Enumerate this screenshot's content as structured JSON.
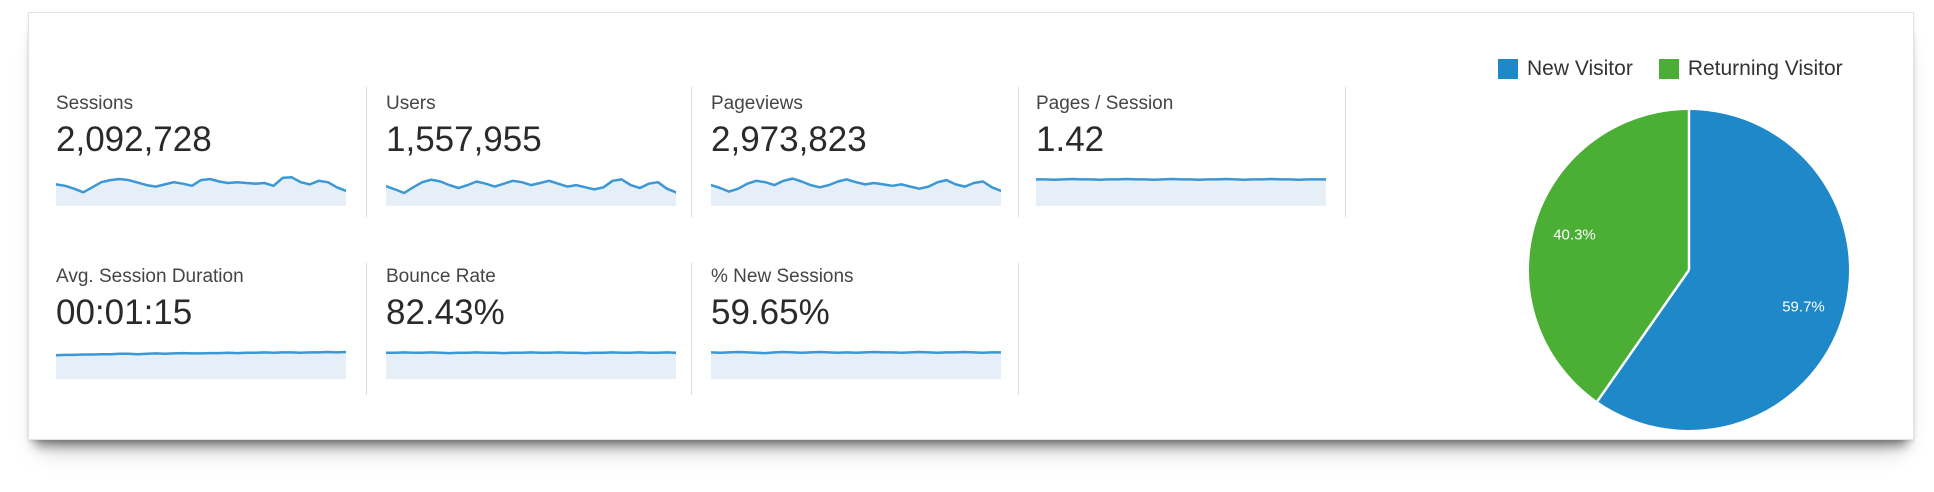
{
  "metrics": [
    {
      "label": "Sessions",
      "value": "2,092,728"
    },
    {
      "label": "Users",
      "value": "1,557,955"
    },
    {
      "label": "Pageviews",
      "value": "2,973,823"
    },
    {
      "label": "Pages / Session",
      "value": "1.42"
    },
    {
      "label": "Avg. Session Duration",
      "value": "00:01:15"
    },
    {
      "label": "Bounce Rate",
      "value": "82.43%"
    },
    {
      "label": "% New Sessions",
      "value": "59.65%"
    }
  ],
  "legend": {
    "items": [
      {
        "label": "New Visitor",
        "color": "#1e88c8"
      },
      {
        "label": "Returning Visitor",
        "color": "#4bae35"
      }
    ]
  },
  "colors": {
    "spark_line": "#3b98d5",
    "spark_fill": "#e6eff8",
    "divider": "#dcdcdc",
    "label_text": "#454545",
    "value_text": "#2a2a2a",
    "pie_label_text": "#ffffff"
  },
  "chart_data": [
    {
      "type": "pie",
      "title": "New vs Returning Visitor share",
      "legend_position": "top",
      "start_angle_deg": 0,
      "direction": "clockwise",
      "slices": [
        {
          "label": "New Visitor",
          "value_pct": 59.7,
          "display": "59.7%",
          "color": "#1e88c8"
        },
        {
          "label": "Returning Visitor",
          "value_pct": 40.3,
          "display": "40.3%",
          "color": "#4bae35"
        }
      ]
    },
    {
      "type": "area",
      "title": "Metric sparklines (values approximate, normalized 0-1)",
      "line_color": "#3b98d5",
      "fill_color": "#e6eff8",
      "series": [
        {
          "name": "Sessions",
          "values_norm": [
            0.6,
            0.56,
            0.48,
            0.38,
            0.52,
            0.66,
            0.72,
            0.75,
            0.72,
            0.65,
            0.58,
            0.54,
            0.6,
            0.66,
            0.62,
            0.56,
            0.72,
            0.75,
            0.68,
            0.64,
            0.66,
            0.64,
            0.62,
            0.64,
            0.56,
            0.78,
            0.8,
            0.66,
            0.6,
            0.7,
            0.66,
            0.52,
            0.42
          ]
        },
        {
          "name": "Users",
          "values_norm": [
            0.55,
            0.46,
            0.36,
            0.52,
            0.66,
            0.73,
            0.68,
            0.58,
            0.5,
            0.58,
            0.68,
            0.62,
            0.54,
            0.62,
            0.7,
            0.66,
            0.58,
            0.64,
            0.7,
            0.62,
            0.54,
            0.58,
            0.52,
            0.46,
            0.52,
            0.7,
            0.74,
            0.58,
            0.5,
            0.62,
            0.66,
            0.48,
            0.38
          ]
        },
        {
          "name": "Pageviews",
          "values_norm": [
            0.58,
            0.5,
            0.4,
            0.48,
            0.62,
            0.7,
            0.66,
            0.58,
            0.7,
            0.76,
            0.68,
            0.58,
            0.52,
            0.58,
            0.68,
            0.74,
            0.66,
            0.6,
            0.64,
            0.6,
            0.56,
            0.6,
            0.54,
            0.48,
            0.54,
            0.66,
            0.72,
            0.6,
            0.54,
            0.64,
            0.68,
            0.52,
            0.42
          ]
        },
        {
          "name": "Pages / Session",
          "values_norm": [
            0.74,
            0.74,
            0.73,
            0.74,
            0.75,
            0.74,
            0.74,
            0.73,
            0.74,
            0.74,
            0.75,
            0.74,
            0.74,
            0.73,
            0.74,
            0.75,
            0.74,
            0.74,
            0.73,
            0.74,
            0.74,
            0.75,
            0.74,
            0.73,
            0.74,
            0.74,
            0.75,
            0.74,
            0.74,
            0.73,
            0.74,
            0.74,
            0.74
          ]
        },
        {
          "name": "Avg. Session Duration",
          "values_norm": [
            0.66,
            0.67,
            0.67,
            0.68,
            0.68,
            0.69,
            0.69,
            0.7,
            0.7,
            0.69,
            0.7,
            0.71,
            0.7,
            0.71,
            0.72,
            0.71,
            0.71,
            0.72,
            0.72,
            0.73,
            0.72,
            0.73,
            0.73,
            0.74,
            0.73,
            0.74,
            0.74,
            0.73,
            0.74,
            0.74,
            0.75,
            0.74,
            0.75
          ]
        },
        {
          "name": "Bounce Rate",
          "values_norm": [
            0.73,
            0.73,
            0.74,
            0.73,
            0.73,
            0.74,
            0.73,
            0.72,
            0.73,
            0.73,
            0.74,
            0.73,
            0.73,
            0.72,
            0.73,
            0.73,
            0.74,
            0.73,
            0.73,
            0.74,
            0.73,
            0.73,
            0.72,
            0.73,
            0.73,
            0.74,
            0.73,
            0.73,
            0.74,
            0.73,
            0.73,
            0.74,
            0.73
          ]
        },
        {
          "name": "% New Sessions",
          "values_norm": [
            0.74,
            0.73,
            0.74,
            0.75,
            0.74,
            0.73,
            0.72,
            0.74,
            0.75,
            0.74,
            0.73,
            0.74,
            0.75,
            0.74,
            0.73,
            0.74,
            0.73,
            0.74,
            0.75,
            0.74,
            0.74,
            0.73,
            0.74,
            0.75,
            0.74,
            0.73,
            0.74,
            0.74,
            0.75,
            0.74,
            0.73,
            0.74,
            0.74
          ]
        }
      ]
    }
  ]
}
